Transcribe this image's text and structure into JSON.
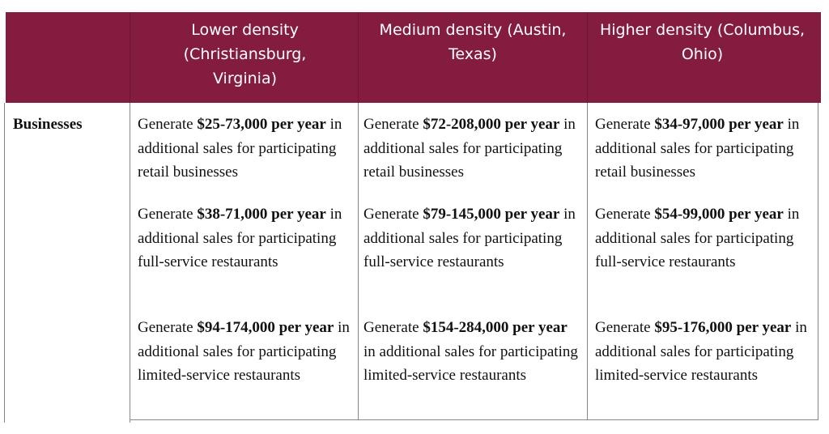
{
  "header": {
    "columns": [
      {
        "label": "Lower density (Christiansburg, Virginia)"
      },
      {
        "label": "Medium density (Austin, Texas)"
      },
      {
        "label": "Higher density (Columbus, Ohio)"
      }
    ],
    "header_color": "#841c40"
  },
  "rows": [
    {
      "label": "Businesses",
      "cells": [
        [
          {
            "prefix": "Generate ",
            "amount": "$25-73,000 per year",
            "suffix": " in additional sales for participating retail businesses"
          },
          {
            "prefix": "Generate ",
            "amount": "$38-71,000 per year",
            "suffix": " in additional sales for participating full-service restaurants"
          },
          {
            "prefix": "Generate ",
            "amount": "$94-174,000 per year",
            "suffix": " in additional sales for participating limited-service restaurants"
          }
        ],
        [
          {
            "prefix": "Generate ",
            "amount": "$72-208,000 per year",
            "suffix": " in additional sales for participating retail businesses"
          },
          {
            "prefix": "Generate ",
            "amount": "$79-145,000 per year",
            "suffix": " in additional sales for participating full-service restaurants"
          },
          {
            "prefix": "Generate ",
            "amount": "$154-284,000 per year",
            "suffix": " in additional sales for participating limited-service restaurants"
          }
        ],
        [
          {
            "prefix": "Generate ",
            "amount": "$34-97,000 per year",
            "suffix": " in additional sales for participating retail businesses"
          },
          {
            "prefix": "Generate ",
            "amount": "$54-99,000 per year",
            "suffix": " in additional sales for participating full-service restaurants"
          },
          {
            "prefix": "Generate ",
            "amount": "$95-176,000 per year",
            "suffix": " in additional sales for participating limited-service restaurants"
          }
        ]
      ]
    }
  ]
}
